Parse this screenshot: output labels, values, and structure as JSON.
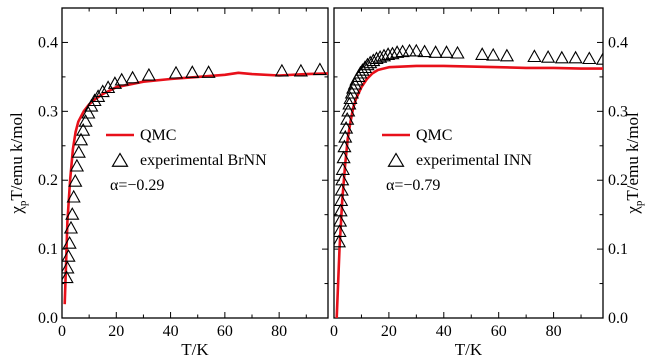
{
  "chart_data": [
    {
      "type": "scatter",
      "panel": "left",
      "xlabel": "T/K",
      "ylabel_main": "χ",
      "ylabel_sub": "p",
      "ylabel_rest": "T/emu k/mol",
      "xlim": [
        0,
        98
      ],
      "ylim": [
        0,
        0.45
      ],
      "x_ticks": [
        0,
        20,
        40,
        60,
        80
      ],
      "y_ticks": [
        0.0,
        0.1,
        0.2,
        0.3,
        0.4
      ],
      "y_tick_labels": [
        "0.0",
        "0.1",
        "0.2",
        "0.3",
        "0.4"
      ],
      "legend": {
        "line_label": "QMC",
        "marker_label": "experimental BrNN"
      },
      "annotation": "α=−0.29",
      "line_color": "#e8101a",
      "series": [
        {
          "name": "QMC",
          "kind": "line",
          "x": [
            1.0,
            1.5,
            2,
            3,
            4,
            5,
            6,
            8,
            10,
            12,
            15,
            20,
            30,
            40,
            50,
            60,
            65,
            70,
            80,
            90,
            98
          ],
          "y": [
            0.02,
            0.08,
            0.14,
            0.2,
            0.245,
            0.27,
            0.285,
            0.3,
            0.31,
            0.317,
            0.325,
            0.335,
            0.343,
            0.347,
            0.35,
            0.353,
            0.356,
            0.354,
            0.352,
            0.354,
            0.355
          ]
        },
        {
          "name": "experimental BrNN",
          "kind": "marker",
          "x": [
            1.7,
            2.0,
            2.4,
            2.8,
            3.3,
            3.8,
            4.3,
            4.9,
            5.5,
            6.2,
            7.0,
            7.8,
            8.7,
            9.7,
            10.8,
            12.0,
            13.3,
            15.0,
            17.0,
            19.5,
            22.0,
            26.0,
            32.0,
            42.0,
            48.0,
            54.0,
            81.0,
            88.0,
            95.0
          ],
          "y": [
            0.058,
            0.072,
            0.089,
            0.108,
            0.13,
            0.15,
            0.175,
            0.198,
            0.22,
            0.24,
            0.258,
            0.272,
            0.285,
            0.297,
            0.307,
            0.315,
            0.321,
            0.328,
            0.334,
            0.34,
            0.345,
            0.348,
            0.352,
            0.355,
            0.356,
            0.356,
            0.358,
            0.358,
            0.36
          ]
        }
      ]
    },
    {
      "type": "scatter",
      "panel": "right",
      "xlabel": "T/K",
      "ylabel_main": "χ",
      "ylabel_sub": "p",
      "ylabel_rest": "T/emu k/mol",
      "xlim": [
        0,
        98
      ],
      "ylim": [
        0,
        0.45
      ],
      "x_ticks": [
        0,
        20,
        40,
        60,
        80
      ],
      "y_ticks": [
        0.0,
        0.1,
        0.2,
        0.3,
        0.4
      ],
      "y_tick_labels": [
        "0.0",
        "0.1",
        "0.2",
        "0.3",
        "0.4"
      ],
      "legend": {
        "line_label": "QMC",
        "marker_label": "experimental INN"
      },
      "annotation": "α=−0.79",
      "line_color": "#e8101a",
      "series": [
        {
          "name": "QMC",
          "kind": "line",
          "x": [
            1.0,
            1.5,
            2,
            3,
            4,
            5,
            6,
            7,
            8,
            10,
            12,
            14,
            16,
            20,
            30,
            40,
            50,
            60,
            70,
            80,
            90,
            98
          ],
          "y": [
            0.0,
            0.05,
            0.1,
            0.17,
            0.22,
            0.26,
            0.285,
            0.305,
            0.318,
            0.335,
            0.347,
            0.355,
            0.36,
            0.364,
            0.366,
            0.366,
            0.365,
            0.364,
            0.363,
            0.363,
            0.362,
            0.362
          ]
        },
        {
          "name": "experimental INN",
          "kind": "marker",
          "x": [
            1.8,
            2.0,
            2.2,
            2.4,
            2.6,
            2.8,
            3.0,
            3.2,
            3.5,
            3.8,
            4.1,
            4.4,
            4.8,
            5.2,
            5.6,
            6.0,
            6.5,
            7.0,
            7.6,
            8.2,
            8.9,
            9.6,
            10.4,
            11.3,
            12.2,
            13.2,
            14.3,
            15.5,
            16.8,
            18.2,
            19.7,
            21.3,
            23.0,
            25.0,
            27.5,
            30.0,
            33.0,
            37.0,
            41.0,
            45.0,
            54.0,
            58.0,
            63.0,
            73.0,
            78.0,
            83.0,
            88.0,
            93.0,
            98.0
          ],
          "y": [
            0.11,
            0.125,
            0.14,
            0.155,
            0.17,
            0.185,
            0.2,
            0.215,
            0.232,
            0.248,
            0.262,
            0.275,
            0.288,
            0.3,
            0.31,
            0.318,
            0.326,
            0.333,
            0.339,
            0.345,
            0.35,
            0.355,
            0.359,
            0.363,
            0.367,
            0.37,
            0.373,
            0.376,
            0.378,
            0.38,
            0.382,
            0.383,
            0.385,
            0.386,
            0.387,
            0.387,
            0.386,
            0.385,
            0.385,
            0.384,
            0.382,
            0.381,
            0.38,
            0.379,
            0.378,
            0.377,
            0.377,
            0.376,
            0.375
          ]
        }
      ]
    }
  ]
}
